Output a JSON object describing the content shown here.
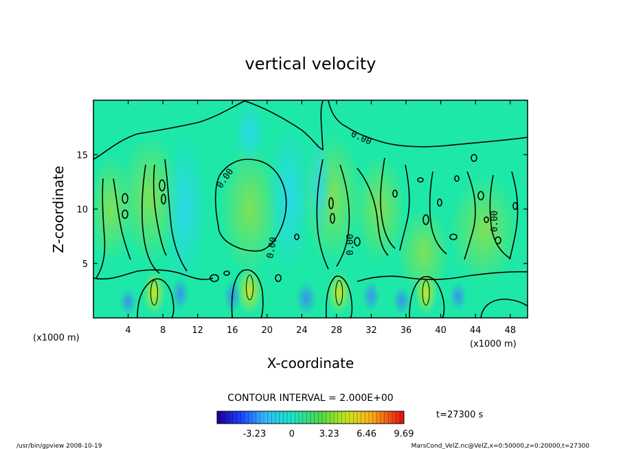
{
  "chart_data": {
    "type": "heatmap",
    "title": "vertical velocity",
    "xlabel": "X-coordinate",
    "ylabel": "Z-coordinate",
    "x_unit": "(x1000 m)",
    "y_unit": "(x1000 m)",
    "xlim": [
      0,
      50
    ],
    "ylim": [
      0,
      20
    ],
    "x_ticks": [
      4,
      8,
      12,
      16,
      20,
      24,
      28,
      32,
      36,
      40,
      44,
      48
    ],
    "y_ticks": [
      5,
      10,
      15
    ],
    "contour_interval_text": "CONTOUR INTERVAL = 2.000E+00",
    "contour_labels": [
      "0.00",
      "0.00",
      "0.00",
      "0.00",
      "0.00"
    ],
    "colorbar": {
      "min": -6.46,
      "max": 9.69,
      "tick_labels": [
        "-3.23",
        "0",
        "3.23",
        "6.46",
        "9.69"
      ],
      "tick_values": [
        -3.23,
        0,
        3.23,
        6.46,
        9.69
      ]
    },
    "time_label": "t=27300 s",
    "footer_left": "/usr/bin/gpview   2008-10-19",
    "footer_right": "MarsCond_VelZ.nc@VelZ,x=0:50000,z=0:20000,t=27300",
    "updrafts": [
      {
        "x": 7.0,
        "z": 2.3
      },
      {
        "x": 18.0,
        "z": 2.8
      },
      {
        "x": 28.3,
        "z": 2.3
      },
      {
        "x": 38.3,
        "z": 2.3
      }
    ]
  }
}
